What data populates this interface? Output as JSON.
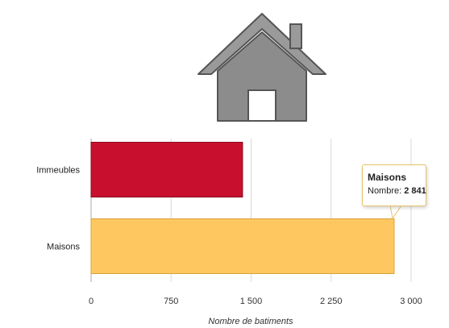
{
  "colors": {
    "immeubles": "#c8102e",
    "maisons": "#ffc75f",
    "house_icon": "#8c8c8c"
  },
  "icon": "house-icon",
  "tooltip": {
    "title": "Maisons",
    "label": "Nombre: ",
    "value": "2 841"
  },
  "chart_data": {
    "type": "bar",
    "orientation": "horizontal",
    "categories": [
      "Immeubles",
      "Maisons"
    ],
    "values": [
      1420,
      2841
    ],
    "xlabel": "Nombre de batiments",
    "xlim": [
      0,
      3000
    ],
    "xticks": [
      0,
      750,
      1500,
      2250,
      3000
    ],
    "xtick_labels": [
      "0",
      "750",
      "1 500",
      "2 250",
      "3 000"
    ],
    "grid": true
  }
}
